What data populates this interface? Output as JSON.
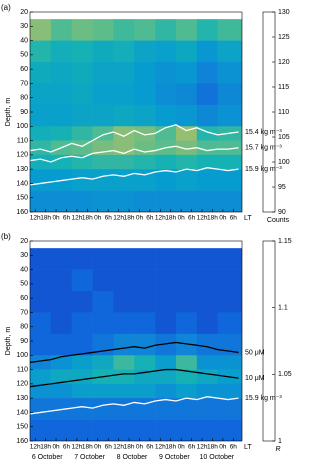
{
  "chart_data": [
    {
      "type": "heatmap",
      "panel_label": "(a)",
      "y_label": "Depth, m",
      "x_unit_label": "LT",
      "colorbar_label": "Counts",
      "colormap": "parula",
      "y_inverted": true,
      "xlim": [
        9,
        131
      ],
      "ylim": [
        20,
        160
      ],
      "xticks": [
        {
          "value": 12,
          "label": "12h"
        },
        {
          "value": 18,
          "label": "18h"
        },
        {
          "value": 24,
          "label": "0h"
        },
        {
          "value": 30,
          "label": "6h"
        },
        {
          "value": 36,
          "label": "12h"
        },
        {
          "value": 42,
          "label": "18h"
        },
        {
          "value": 48,
          "label": "0h"
        },
        {
          "value": 54,
          "label": "6h"
        },
        {
          "value": 60,
          "label": "12h"
        },
        {
          "value": 66,
          "label": "18h"
        },
        {
          "value": 72,
          "label": "0h"
        },
        {
          "value": 78,
          "label": "6h"
        },
        {
          "value": 84,
          "label": "12h"
        },
        {
          "value": 90,
          "label": "18h"
        },
        {
          "value": 96,
          "label": "0h"
        },
        {
          "value": 102,
          "label": "6h"
        },
        {
          "value": 108,
          "label": "12h"
        },
        {
          "value": 114,
          "label": "18h"
        },
        {
          "value": 120,
          "label": "0h"
        },
        {
          "value": 126,
          "label": "6h"
        }
      ],
      "yticks": [
        20,
        30,
        40,
        50,
        60,
        70,
        80,
        90,
        100,
        110,
        120,
        130,
        140,
        150,
        160
      ],
      "clim": [
        90,
        130
      ],
      "cticks": [
        90,
        95,
        100,
        105,
        110,
        115,
        120,
        125,
        130
      ],
      "x_edges": [
        9,
        21,
        33,
        45,
        57,
        69,
        81,
        93,
        105,
        117,
        131
      ],
      "y_edges": [
        25,
        40,
        55,
        70,
        85,
        100,
        110,
        120,
        130,
        145,
        160
      ],
      "z": [
        [
          122,
          118,
          120,
          119,
          117,
          118,
          116,
          118,
          115,
          117
        ],
        [
          115,
          113,
          114,
          112,
          113,
          110,
          109,
          111,
          107,
          110
        ],
        [
          112,
          111,
          112,
          110,
          110,
          108,
          106,
          107,
          103,
          106
        ],
        [
          110,
          110,
          111,
          109,
          109,
          108,
          105,
          104,
          100,
          104
        ],
        [
          109,
          109,
          110,
          110,
          111,
          110,
          108,
          107,
          104,
          106
        ],
        [
          113,
          114,
          116,
          118,
          122,
          121,
          118,
          123,
          115,
          116
        ],
        [
          116,
          118,
          119,
          121,
          122,
          120,
          119,
          121,
          118,
          118
        ],
        [
          113,
          114,
          115,
          116,
          116,
          115,
          114,
          115,
          114,
          114
        ],
        [
          108,
          108,
          109,
          109,
          109,
          109,
          108,
          109,
          108,
          108
        ],
        [
          105,
          105,
          105,
          106,
          106,
          105,
          105,
          105,
          105,
          105
        ]
      ],
      "lines": [
        {
          "name": "15.4 kg m⁻³",
          "color": "#ffffff",
          "x": [
            9,
            15,
            21,
            27,
            33,
            39,
            45,
            51,
            57,
            63,
            69,
            75,
            81,
            87,
            93,
            99,
            105,
            111,
            117,
            123,
            129
          ],
          "values": [
            117,
            116,
            118,
            115,
            112,
            114,
            110,
            106,
            104,
            107,
            103,
            106,
            105,
            101,
            99,
            103,
            101,
            104,
            106,
            105,
            104
          ]
        },
        {
          "name": "15.7 kg m⁻³",
          "color": "#ffffff",
          "x": [
            9,
            15,
            21,
            27,
            33,
            39,
            45,
            51,
            57,
            63,
            69,
            75,
            81,
            87,
            93,
            99,
            105,
            111,
            117,
            123,
            129
          ],
          "values": [
            124,
            123,
            125,
            122,
            121,
            122,
            119,
            118,
            117,
            119,
            116,
            118,
            117,
            115,
            114,
            116,
            115,
            117,
            116,
            116,
            115
          ]
        },
        {
          "name": "15.9 kg m⁻³",
          "color": "#ffffff",
          "x": [
            9,
            15,
            21,
            27,
            33,
            39,
            45,
            51,
            57,
            63,
            69,
            75,
            81,
            87,
            93,
            99,
            105,
            111,
            117,
            123,
            129
          ],
          "values": [
            141,
            140,
            139,
            138,
            137,
            136,
            137,
            135,
            134,
            135,
            133,
            134,
            132,
            131,
            132,
            130,
            131,
            129,
            130,
            131,
            130
          ]
        }
      ]
    },
    {
      "type": "heatmap",
      "panel_label": "(b)",
      "y_label": "Depth, m",
      "x_unit_label": "LT",
      "colorbar_label": "R",
      "colormap": "parula",
      "y_inverted": true,
      "xlim": [
        9,
        131
      ],
      "ylim": [
        20,
        160
      ],
      "xticks": [
        {
          "value": 12,
          "label": "12h"
        },
        {
          "value": 18,
          "label": "18h"
        },
        {
          "value": 24,
          "label": "0h"
        },
        {
          "value": 30,
          "label": "6h"
        },
        {
          "value": 36,
          "label": "12h"
        },
        {
          "value": 42,
          "label": "18h"
        },
        {
          "value": 48,
          "label": "0h"
        },
        {
          "value": 54,
          "label": "6h"
        },
        {
          "value": 60,
          "label": "12h"
        },
        {
          "value": 66,
          "label": "18h"
        },
        {
          "value": 72,
          "label": "0h"
        },
        {
          "value": 78,
          "label": "6h"
        },
        {
          "value": 84,
          "label": "12h"
        },
        {
          "value": 90,
          "label": "18h"
        },
        {
          "value": 96,
          "label": "0h"
        },
        {
          "value": 102,
          "label": "6h"
        },
        {
          "value": 108,
          "label": "12h"
        },
        {
          "value": 114,
          "label": "18h"
        },
        {
          "value": 120,
          "label": "0h"
        },
        {
          "value": 126,
          "label": "6h"
        }
      ],
      "yticks": [
        20,
        30,
        40,
        50,
        60,
        70,
        80,
        90,
        100,
        110,
        120,
        130,
        140,
        150,
        160
      ],
      "clim": [
        1,
        1.15
      ],
      "cticks": [
        1,
        1.05,
        1.1,
        1.15
      ],
      "x_dates": [
        "6 October",
        "7 October",
        "8 October",
        "9 October",
        "10 October"
      ],
      "x_edges": [
        9,
        21,
        33,
        45,
        57,
        69,
        81,
        93,
        105,
        117,
        131
      ],
      "y_edges": [
        25,
        40,
        55,
        70,
        85,
        100,
        110,
        120,
        130,
        145,
        160
      ],
      "z": [
        [
          1.02,
          1.02,
          1.02,
          1.02,
          1.02,
          1.02,
          1.02,
          1.02,
          1.02,
          1.02
        ],
        [
          1.02,
          1.02,
          1.03,
          1.02,
          1.02,
          1.02,
          1.02,
          1.02,
          1.02,
          1.02
        ],
        [
          1.02,
          1.02,
          1.02,
          1.03,
          1.02,
          1.02,
          1.02,
          1.02,
          1.02,
          1.02
        ],
        [
          1.03,
          1.02,
          1.03,
          1.03,
          1.03,
          1.03,
          1.02,
          1.03,
          1.02,
          1.03
        ],
        [
          1.03,
          1.03,
          1.03,
          1.04,
          1.05,
          1.05,
          1.04,
          1.05,
          1.04,
          1.04
        ],
        [
          1.05,
          1.06,
          1.07,
          1.08,
          1.1,
          1.09,
          1.07,
          1.1,
          1.06,
          1.06
        ],
        [
          1.07,
          1.08,
          1.08,
          1.09,
          1.09,
          1.08,
          1.08,
          1.09,
          1.08,
          1.07
        ],
        [
          1.06,
          1.06,
          1.07,
          1.07,
          1.07,
          1.07,
          1.06,
          1.07,
          1.06,
          1.06
        ],
        [
          1.04,
          1.04,
          1.04,
          1.04,
          1.04,
          1.04,
          1.04,
          1.04,
          1.04,
          1.04
        ],
        [
          1.03,
          1.03,
          1.03,
          1.03,
          1.03,
          1.03,
          1.03,
          1.03,
          1.03,
          1.03
        ]
      ],
      "lines": [
        {
          "name": "50 μM",
          "color": "#000000",
          "x": [
            9,
            15,
            21,
            27,
            33,
            39,
            45,
            51,
            57,
            63,
            69,
            75,
            81,
            87,
            93,
            99,
            105,
            111,
            117,
            123,
            129
          ],
          "values": [
            105,
            104,
            103,
            101,
            100,
            99,
            98,
            97,
            96,
            95,
            94,
            95,
            93,
            92,
            91,
            92,
            93,
            94,
            96,
            97,
            98
          ]
        },
        {
          "name": "10 μM",
          "color": "#000000",
          "x": [
            9,
            15,
            21,
            27,
            33,
            39,
            45,
            51,
            57,
            63,
            69,
            75,
            81,
            87,
            93,
            99,
            105,
            111,
            117,
            123,
            129
          ],
          "values": [
            122,
            121,
            120,
            119,
            118,
            117,
            116,
            115,
            114,
            113,
            113,
            112,
            111,
            110,
            110,
            111,
            112,
            113,
            114,
            115,
            116
          ]
        },
        {
          "name": "15.9 kg m⁻³",
          "color": "#ffffff",
          "x": [
            9,
            15,
            21,
            27,
            33,
            39,
            45,
            51,
            57,
            63,
            69,
            75,
            81,
            87,
            93,
            99,
            105,
            111,
            117,
            123,
            129
          ],
          "values": [
            141,
            140,
            139,
            138,
            137,
            136,
            137,
            135,
            134,
            135,
            133,
            134,
            132,
            131,
            132,
            130,
            131,
            129,
            130,
            131,
            130
          ]
        }
      ]
    }
  ]
}
